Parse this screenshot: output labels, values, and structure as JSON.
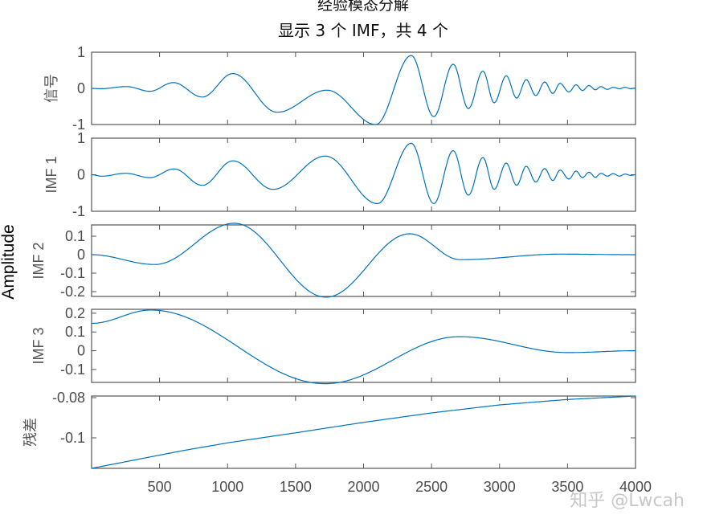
{
  "title": "经验模态分解",
  "subtitle": "显示 3 个 IMF，共 4 个",
  "shared_ylabel": "Amplitude",
  "watermark": "知乎 @Lwcah",
  "colors": {
    "line": "#0072BD",
    "axes": "#555555",
    "text": "#4d4d4d"
  },
  "chart_data": {
    "type": "line",
    "xlim": [
      0,
      4000
    ],
    "xticks": [
      500,
      1000,
      1500,
      2000,
      2500,
      3000,
      3500,
      4000
    ],
    "xtick_labels": [
      "500",
      "1000",
      "1500",
      "2000",
      "2500",
      "3000",
      "3500",
      "4000"
    ],
    "grid": false,
    "panels": [
      {
        "ylabel": "信号",
        "ylim": [
          -1,
          1
        ],
        "yticks": [
          1,
          0,
          -1
        ],
        "ytick_labels": [
          "1",
          "0",
          "-1"
        ],
        "interp": "cosine",
        "x": [
          0,
          63,
          258,
          429,
          601,
          814,
          1039,
          1364,
          1731,
          2090,
          2351,
          2517,
          2659,
          2771,
          2878,
          2961,
          3049,
          3126,
          3196,
          3267,
          3332,
          3392,
          3445,
          3510,
          3563,
          3610,
          3658,
          3705,
          3746,
          3793,
          3835,
          3882,
          3923,
          3965,
          4000
        ],
        "y": [
          0,
          -0.01,
          0.05,
          -0.08,
          0.16,
          -0.24,
          0.41,
          -0.66,
          -0.05,
          -1.0,
          0.91,
          -0.78,
          0.67,
          -0.56,
          0.48,
          -0.4,
          0.35,
          -0.27,
          0.24,
          -0.2,
          0.18,
          -0.14,
          0.14,
          -0.1,
          0.1,
          -0.06,
          0.08,
          -0.04,
          0.05,
          -0.03,
          0.03,
          -0.01,
          0.03,
          -0.01,
          0.01
        ]
      },
      {
        "ylabel": "IMF 1",
        "ylim": [
          -1,
          1
        ],
        "yticks": [
          1,
          0,
          -1
        ],
        "ytick_labels": [
          "1",
          "0",
          "-1"
        ],
        "interp": "cosine",
        "x": [
          0,
          74,
          251,
          429,
          607,
          814,
          1039,
          1334,
          1719,
          2102,
          2351,
          2517,
          2659,
          2771,
          2878,
          2961,
          3049,
          3126,
          3196,
          3267,
          3332,
          3392,
          3445,
          3510,
          3563,
          3610,
          3658,
          3705,
          3746,
          3793,
          3835,
          3882,
          3923,
          3965,
          4000
        ],
        "y": [
          0,
          -0.04,
          0.04,
          -0.08,
          0.16,
          -0.29,
          0.38,
          -0.4,
          0.51,
          -0.79,
          0.86,
          -0.79,
          0.66,
          -0.56,
          0.47,
          -0.4,
          0.32,
          -0.29,
          0.23,
          -0.2,
          0.17,
          -0.16,
          0.13,
          -0.12,
          0.1,
          -0.08,
          0.07,
          -0.07,
          0.04,
          -0.04,
          0.03,
          -0.04,
          0.02,
          -0.02,
          0
        ]
      },
      {
        "ylabel": "IMF 2",
        "ylim": [
          -0.226,
          0.161
        ],
        "yticks": [
          0.1,
          0,
          -0.1,
          -0.2
        ],
        "ytick_labels": [
          "0.1",
          "0",
          "-0.1",
          "-0.2"
        ],
        "interp": "cosine",
        "x": [
          0,
          464,
          1050,
          1724,
          2339,
          2711,
          3444,
          4000
        ],
        "y": [
          0,
          -0.053,
          0.17,
          -0.23,
          0.113,
          -0.027,
          0.003,
          0.0
        ]
      },
      {
        "ylabel": "IMF 3",
        "ylim": [
          -0.169,
          0.221
        ],
        "yticks": [
          0.2,
          0.1,
          0,
          -0.1
        ],
        "ytick_labels": [
          "0.2",
          "0.1",
          "0",
          "-0.1"
        ],
        "interp": "cosine",
        "x": [
          0,
          436,
          1719,
          2706,
          3503,
          4000
        ],
        "y": [
          0.146,
          0.217,
          -0.176,
          0.075,
          -0.01,
          0.0
        ]
      },
      {
        "ylabel": "残差",
        "ylim": [
          -0.1152,
          -0.0792
        ],
        "yticks": [
          -0.08,
          -0.1
        ],
        "ytick_labels": [
          "-0.08",
          "-0.1"
        ],
        "interp": "linear",
        "x": [
          0,
          660,
          1000,
          1500,
          2000,
          2500,
          3000,
          3500,
          4000
        ],
        "y": [
          -0.1152,
          -0.1065,
          -0.1025,
          -0.0975,
          -0.0923,
          -0.0876,
          -0.0836,
          -0.0809,
          -0.0792
        ]
      }
    ]
  }
}
